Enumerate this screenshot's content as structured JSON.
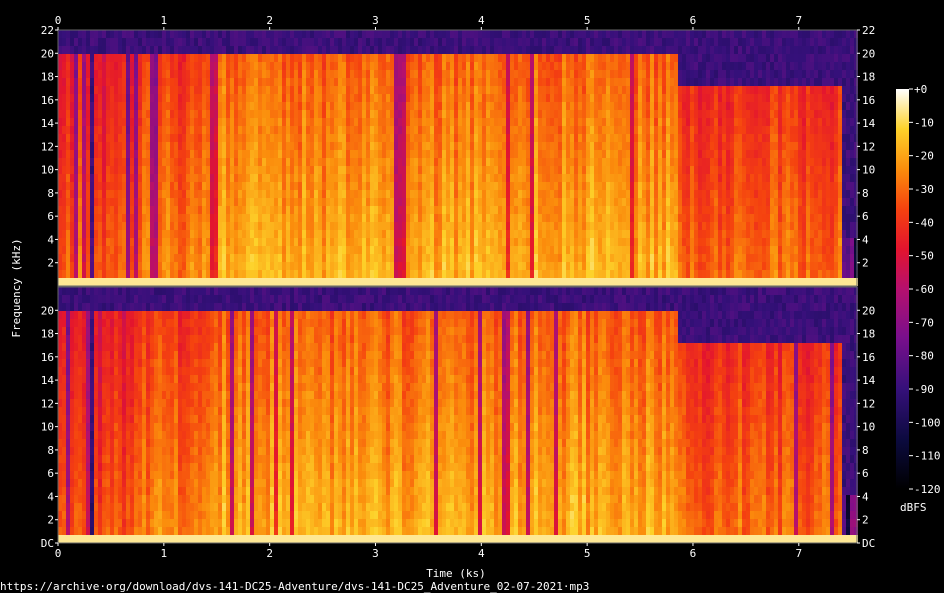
{
  "chart_data": {
    "type": "heatmap",
    "xlabel": "Time (ks)",
    "ylabel": "Frequency (kHz)",
    "colorbar_label": "dBFS",
    "x_ticks": [
      "0",
      "1",
      "2",
      "3",
      "4",
      "5",
      "6",
      "7"
    ],
    "xlim": [
      0,
      7.55
    ],
    "ylim": [
      0,
      22
    ],
    "colorbar_range": [
      -120,
      0
    ],
    "colorbar_ticks": [
      "+0",
      "-10",
      "-20",
      "-30",
      "-40",
      "-50",
      "-60",
      "-70",
      "-80",
      "-90",
      "-100",
      "-110",
      "-120"
    ],
    "channels": [
      {
        "left_ticks": [
          "22",
          "20",
          "18",
          "16",
          "14",
          "12",
          "10",
          "8",
          "6",
          "4",
          "2"
        ],
        "right_ticks": [
          "22",
          "20",
          "18",
          "16",
          "14",
          "12",
          "10",
          "8",
          "6",
          "4",
          "2"
        ],
        "tick_values": [
          22,
          20,
          18,
          16,
          14,
          12,
          10,
          8,
          6,
          4,
          2
        ]
      },
      {
        "left_ticks": [
          "20",
          "18",
          "16",
          "14",
          "12",
          "10",
          "8",
          "6",
          "4",
          "2",
          "DC"
        ],
        "right_ticks": [
          "20",
          "18",
          "16",
          "14",
          "12",
          "10",
          "8",
          "6",
          "4",
          "2",
          "DC"
        ],
        "tick_values": [
          20,
          18,
          16,
          14,
          12,
          10,
          8,
          6,
          4,
          2,
          0
        ]
      }
    ],
    "segments": [
      {
        "x": [
          0,
          0.28
        ],
        "cutoff_khz": 20,
        "level": 0.62
      },
      {
        "x": [
          0.28,
          0.33
        ],
        "cutoff_khz": 4,
        "level": 0.15
      },
      {
        "x": [
          0.33,
          0.72
        ],
        "cutoff_khz": 20,
        "level": 0.58
      },
      {
        "x": [
          0.72,
          1.4
        ],
        "cutoff_khz": 20,
        "level": 0.66
      },
      {
        "x": [
          1.4,
          5.85
        ],
        "cutoff_khz": 20,
        "level": 0.72
      },
      {
        "x": [
          5.85,
          7.4
        ],
        "cutoff_khz": 17,
        "level": 0.62
      },
      {
        "x": [
          7.4,
          7.55
        ],
        "cutoff_khz": 4,
        "level": 0.25
      }
    ],
    "grid": false
  },
  "footer": {
    "source": "https://archive·org/download/dvs-141-DC25-Adventure/dvs-141-DC25_Adventure_02-07-2021·mp3"
  }
}
